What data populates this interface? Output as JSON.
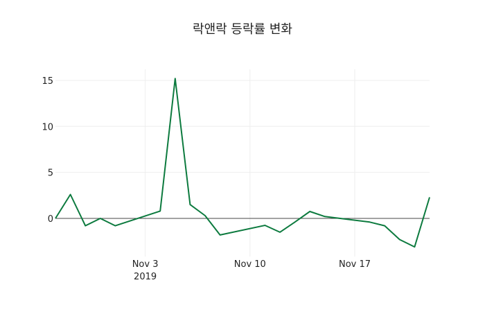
{
  "chart_data": {
    "type": "line",
    "title": "락앤락 등락률 변화",
    "xlabel": "",
    "ylabel": "",
    "x": [
      "2019-10-28",
      "2019-10-29",
      "2019-10-30",
      "2019-10-31",
      "2019-11-01",
      "2019-11-04",
      "2019-11-05",
      "2019-11-06",
      "2019-11-07",
      "2019-11-08",
      "2019-11-11",
      "2019-11-12",
      "2019-11-13",
      "2019-11-14",
      "2019-11-15",
      "2019-11-18",
      "2019-11-19",
      "2019-11-20",
      "2019-11-21",
      "2019-11-22"
    ],
    "series": [
      {
        "name": "등락률",
        "color": "#0c7a3e",
        "values": [
          0.0,
          2.6,
          -0.8,
          0.0,
          -0.8,
          0.8,
          15.2,
          1.5,
          0.3,
          -1.8,
          -0.75,
          -1.5,
          -0.4,
          0.75,
          0.2,
          -0.4,
          -0.8,
          -2.3,
          -3.1,
          2.3
        ]
      }
    ],
    "x_ticks": [
      {
        "label": "Nov 3",
        "sub": "2019"
      },
      {
        "label": "Nov 10"
      },
      {
        "label": "Nov 17"
      }
    ],
    "y_ticks": [
      "0",
      "5",
      "10",
      "15"
    ],
    "ylim": [
      -3.6,
      16.3
    ],
    "grid": true,
    "legend": false
  }
}
